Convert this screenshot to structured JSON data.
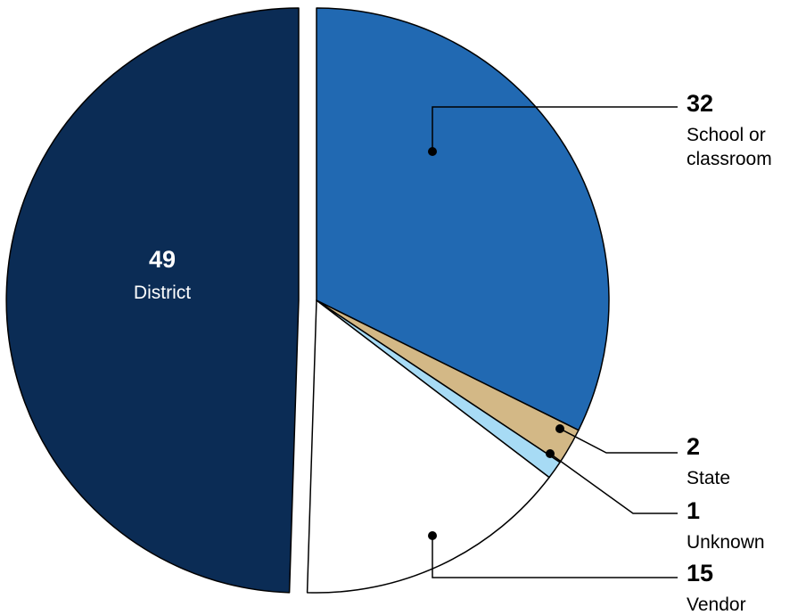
{
  "chart_data": {
    "type": "pie",
    "slices": [
      {
        "label": "School or classroom",
        "label_lines": [
          "School or",
          "classroom"
        ],
        "value": 32,
        "display": "32",
        "color": "#2169b2"
      },
      {
        "label": "State",
        "label_lines": [
          "State"
        ],
        "value": 2,
        "display": "2",
        "color": "#d3b886"
      },
      {
        "label": "Unknown",
        "label_lines": [
          "Unknown"
        ],
        "value": 1,
        "display": "1",
        "color": "#a7dbf5"
      },
      {
        "label": "Vendor",
        "label_lines": [
          "Vendor"
        ],
        "value": 15,
        "display": "15",
        "color": "#ffffff"
      },
      {
        "label": "District",
        "label_lines": [
          "District"
        ],
        "value": 49,
        "display": "49",
        "color": "#0b2c55"
      }
    ],
    "exploded": "District",
    "outline_color": "#000000",
    "legend": "none"
  }
}
